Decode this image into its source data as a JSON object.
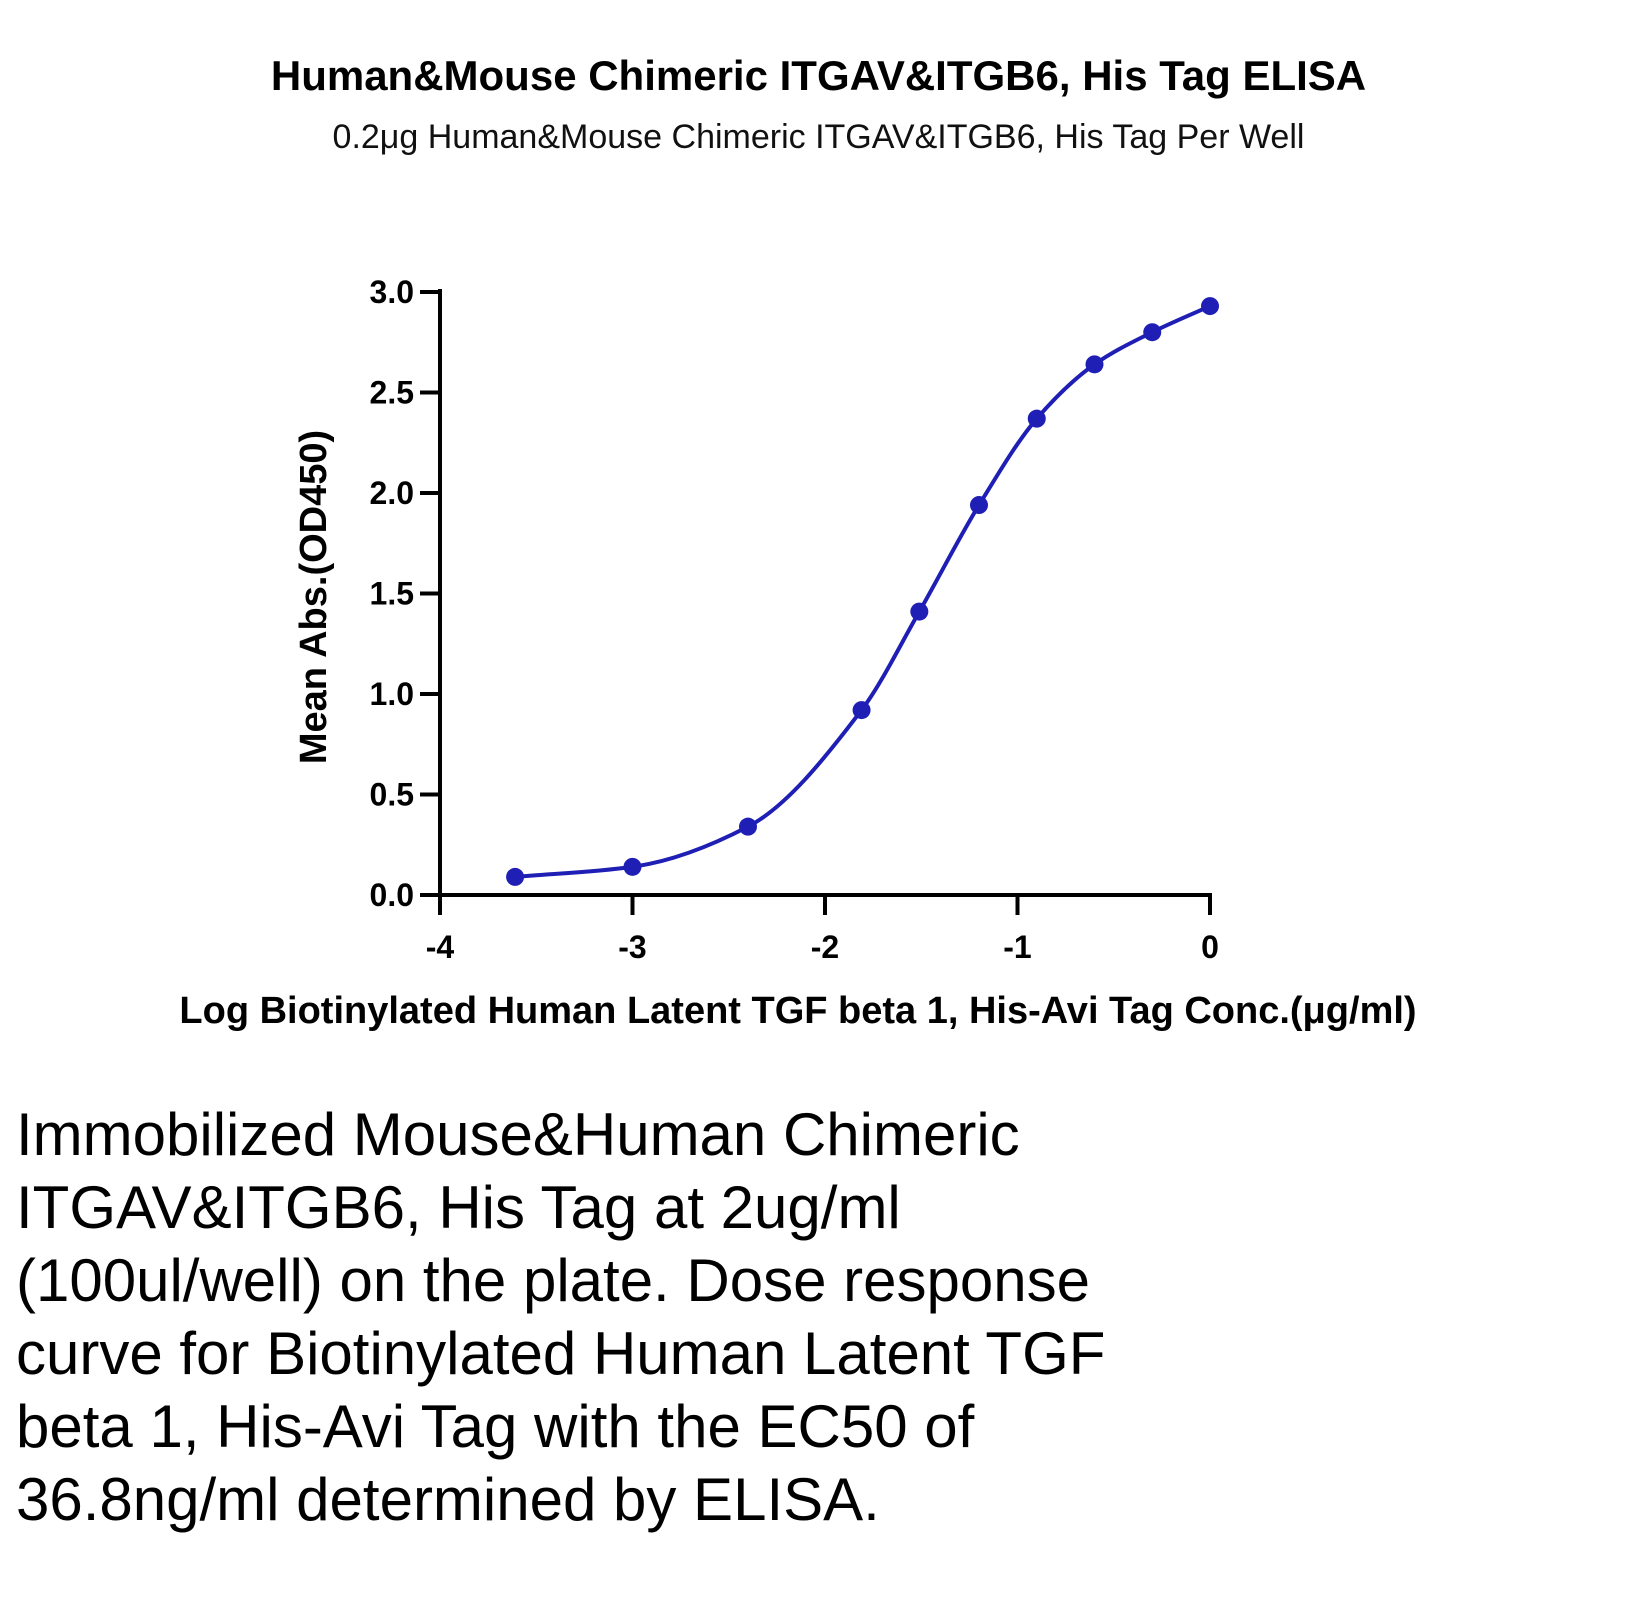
{
  "title": "Human&Mouse Chimeric ITGAV&ITGB6, His Tag ELISA",
  "subtitle": "0.2μg Human&Mouse Chimeric ITGAV&ITGB6, His Tag Per Well",
  "description": "Immobilized Mouse&Human Chimeric ITGAV&ITGB6, His Tag at 2ug/ml (100ul/well) on the plate. Dose response curve for Biotinylated Human Latent TGF beta 1, His-Avi Tag with the EC50 of 36.8ng/ml determined by ELISA.",
  "colors": {
    "series": "#1f1fb5",
    "axis": "#000000"
  },
  "chart_data": {
    "type": "scatter",
    "title": "Human&Mouse Chimeric ITGAV&ITGB6, His Tag ELISA",
    "subtitle": "0.2μg Human&Mouse Chimeric ITGAV&ITGB6, His Tag Per Well",
    "xlabel": "Log Biotinylated Human Latent TGF beta 1, His-Avi Tag Conc.(μg/ml)",
    "ylabel": "Mean Abs.(OD450)",
    "xlim": [
      -4,
      0
    ],
    "ylim": [
      0,
      3.0
    ],
    "x_ticks": [
      "-4",
      "-3",
      "-2",
      "-1",
      "0"
    ],
    "y_ticks": [
      "0.0",
      "0.5",
      "1.0",
      "1.5",
      "2.0",
      "2.5",
      "3.0"
    ],
    "grid": false,
    "fit_curve": "sigmoidal",
    "series": [
      {
        "x": [
          -3.61,
          -3.0,
          -2.4,
          -1.81,
          -1.51,
          -1.2,
          -0.9,
          -0.6,
          -0.3,
          0.0
        ],
        "y": [
          0.09,
          0.14,
          0.34,
          0.92,
          1.41,
          1.94,
          2.37,
          2.64,
          2.8,
          2.93
        ]
      }
    ]
  }
}
